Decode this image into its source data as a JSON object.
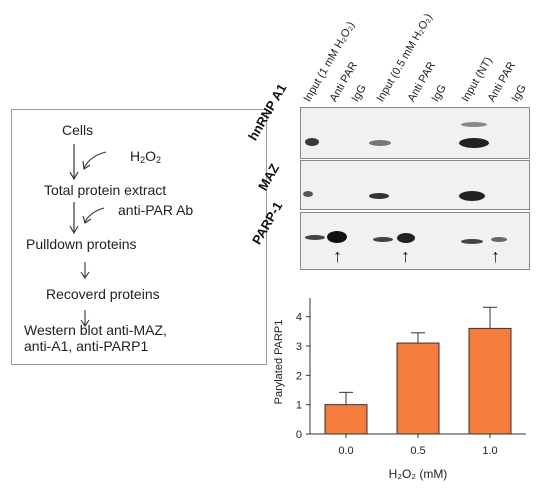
{
  "flowchart": {
    "steps": {
      "cells": "Cells",
      "h2o2_base": "H",
      "h2o2_sub1": "2",
      "h2o2_mid": "O",
      "h2o2_sub2": "2",
      "total_extract": "Total protein extract",
      "anti_par": "anti-PAR Ab",
      "pulldown": "Pulldown proteins",
      "recovered": "Recoverd proteins",
      "western_line1": "Western blot anti-MAZ,",
      "western_line2": "anti-A1, anti-PARP1"
    }
  },
  "blot": {
    "lanes": [
      "Input (1 mM H₂O₂)",
      "Anti PAR",
      "IgG",
      "Input (0.5 mM H₂O₂)",
      "Anti PAR",
      "IgG",
      "Input (NT)",
      "Anti PAR",
      "IgG"
    ],
    "rows": [
      "hnRNP A1",
      "MAZ",
      "PARP-1"
    ],
    "arrow_glyph": "↑"
  },
  "chart_data": {
    "type": "bar",
    "categories": [
      "0.0",
      "0.5",
      "1.0"
    ],
    "values": [
      1.0,
      3.1,
      3.6
    ],
    "errors": [
      0.42,
      0.35,
      0.72
    ],
    "ylabel": "Parylated PARP1",
    "xlabel": "H₂O₂ (mM)",
    "ylim": [
      0,
      4.5
    ],
    "yticks": [
      "0",
      "1",
      "2",
      "3",
      "4"
    ],
    "bar_color": "#f47c3c",
    "grid": false
  }
}
